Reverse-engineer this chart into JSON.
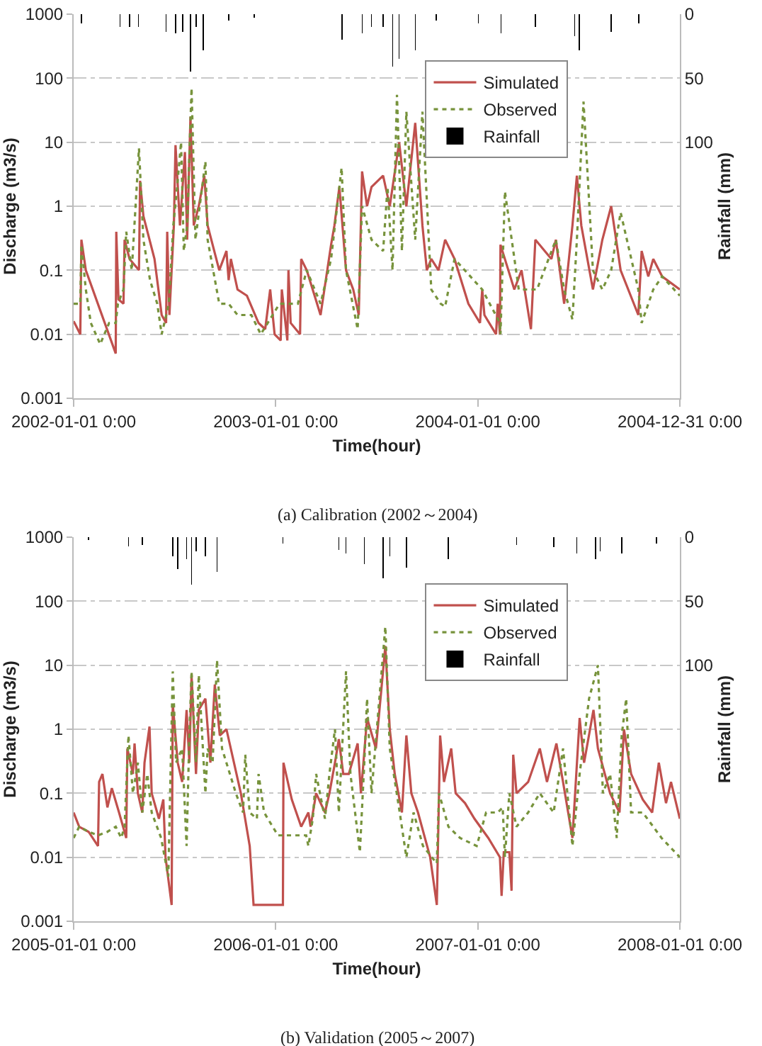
{
  "chart_data": [
    {
      "type": "line",
      "xlabel": "Time(hour)",
      "ylabel": "Discharge (m3/s)",
      "y2label": "Rainfall (mm)",
      "annotations": [
        "(a) Calibration (2002～2004)"
      ],
      "log": "y",
      "grid": "y",
      "legend": "top right",
      "xlim": [
        "2002-01-01",
        "2004-12-31"
      ],
      "xticks": [
        {
          "value": "2002-01-01",
          "label": "2002-01-01 0:00"
        },
        {
          "value": "2003-01-01",
          "label": "2003-01-01 0:00"
        },
        {
          "value": "2004-01-01",
          "label": "2004-01-01 0:00"
        },
        {
          "value": "2004-12-31",
          "label": "2004-12-31 0:00"
        }
      ],
      "ylim": [
        0.001,
        1000
      ],
      "yticks": [
        0.001,
        0.01,
        0.1,
        1,
        10,
        100,
        1000
      ],
      "y2lim": [
        300,
        0
      ],
      "y2ticks": [
        0,
        50,
        100
      ],
      "series": [
        {
          "name": "Simulated",
          "line_style": "solid",
          "color": "#c0504d",
          "x": [
            "2002-01-01",
            "2002-01-13",
            "2002-01-15",
            "2002-01-23",
            "2002-03-18",
            "2002-03-19",
            "2002-03-23",
            "2002-04-01",
            "2002-04-03",
            "2002-04-12",
            "2002-04-29",
            "2002-05-01",
            "2002-05-07",
            "2002-05-27",
            "2002-06-09",
            "2002-06-17",
            "2002-06-19",
            "2002-06-23",
            "2002-07-01",
            "2002-07-04",
            "2002-07-12",
            "2002-07-21",
            "2002-07-25",
            "2002-07-31",
            "2002-08-06",
            "2002-08-15",
            "2002-08-25",
            "2002-08-31",
            "2002-09-21",
            "2002-10-04",
            "2002-10-08",
            "2002-10-12",
            "2002-10-24",
            "2002-11-10",
            "2002-12-01",
            "2002-12-13",
            "2002-12-22",
            "2002-12-30",
            "2003-01-10",
            "2003-01-12",
            "2003-01-22",
            "2003-01-24",
            "2003-01-28",
            "2003-02-14",
            "2003-02-16",
            "2003-02-26",
            "2003-03-23",
            "2003-04-11",
            "2003-04-17",
            "2003-04-26",
            "2003-05-08",
            "2003-05-21",
            "2003-05-31",
            "2003-06-06",
            "2003-06-15",
            "2003-06-23",
            "2003-07-14",
            "2003-07-26",
            "2003-08-12",
            "2003-08-25",
            "2003-09-10",
            "2003-09-23",
            "2003-10-01",
            "2003-10-09",
            "2003-10-22",
            "2003-11-03",
            "2003-11-20",
            "2003-12-15",
            "2004-01-05",
            "2004-01-09",
            "2004-01-13",
            "2004-02-03",
            "2004-02-06",
            "2004-02-10",
            "2004-02-11",
            "2004-03-07",
            "2004-03-20",
            "2004-04-06",
            "2004-04-14",
            "2004-05-13",
            "2004-05-21",
            "2004-06-05",
            "2004-06-20",
            "2004-06-28",
            "2004-07-06",
            "2004-07-27",
            "2004-08-13",
            "2004-08-29",
            "2004-09-15",
            "2004-10-17",
            "2004-10-23",
            "2004-11-04",
            "2004-11-13",
            "2004-11-29",
            "2004-12-31"
          ],
          "values": [
            0.016,
            0.01,
            0.3,
            0.1,
            0.005,
            0.4,
            0.035,
            0.03,
            0.3,
            0.15,
            0.1,
            2.5,
            0.7,
            0.15,
            0.02,
            0.015,
            0.4,
            0.02,
            0.5,
            9,
            0.5,
            7,
            0.3,
            25,
            0.5,
            1,
            3,
            0.5,
            0.1,
            0.2,
            0.07,
            0.15,
            0.05,
            0.04,
            0.015,
            0.012,
            0.05,
            0.01,
            0.008,
            0.05,
            0.008,
            0.1,
            0.015,
            0.01,
            0.15,
            0.1,
            0.02,
            0.25,
            0.5,
            2,
            0.1,
            0.05,
            0.02,
            3.5,
            1,
            2,
            3,
            1,
            10,
            1,
            20,
            0.5,
            0.1,
            0.15,
            0.1,
            0.3,
            0.15,
            0.03,
            0.015,
            0.05,
            0.02,
            0.01,
            0.03,
            0.01,
            0.25,
            0.05,
            0.1,
            0.012,
            0.3,
            0.15,
            0.3,
            0.03,
            0.5,
            3,
            0.5,
            0.05,
            0.3,
            1,
            0.1,
            0.02,
            0.2,
            0.08,
            0.15,
            0.08,
            0.05
          ]
        },
        {
          "name": "Observed",
          "line_style": "dotted",
          "color": "#77933c",
          "x": [
            "2002-01-01",
            "2002-01-13",
            "2002-01-15",
            "2002-01-23",
            "2002-02-01",
            "2002-02-18",
            "2002-03-06",
            "2002-03-18",
            "2002-03-22",
            "2002-04-01",
            "2002-04-06",
            "2002-04-16",
            "2002-04-29",
            "2002-05-07",
            "2002-05-19",
            "2002-06-01",
            "2002-06-09",
            "2002-06-22",
            "2002-06-30",
            "2002-07-07",
            "2002-07-14",
            "2002-07-19",
            "2002-07-25",
            "2002-08-02",
            "2002-08-09",
            "2002-08-27",
            "2002-08-31",
            "2002-09-21",
            "2002-10-08",
            "2002-10-24",
            "2002-11-18",
            "2002-12-05",
            "2003-01-08",
            "2003-02-10",
            "2003-02-26",
            "2003-03-23",
            "2003-04-11",
            "2003-04-30",
            "2003-05-08",
            "2003-05-29",
            "2003-06-06",
            "2003-06-23",
            "2003-07-14",
            "2003-07-22",
            "2003-07-31",
            "2003-08-08",
            "2003-08-17",
            "2003-08-25",
            "2003-09-10",
            "2003-09-23",
            "2003-10-09",
            "2003-10-26",
            "2003-11-03",
            "2003-11-20",
            "2004-01-09",
            "2004-02-10",
            "2004-02-11",
            "2004-02-19",
            "2004-03-15",
            "2004-03-31",
            "2004-04-17",
            "2004-05-21",
            "2004-06-05",
            "2004-06-20",
            "2004-06-28",
            "2004-07-10",
            "2004-07-27",
            "2004-08-13",
            "2004-08-29",
            "2004-09-15",
            "2004-10-17",
            "2004-10-23",
            "2004-11-13",
            "2004-11-29",
            "2004-12-31"
          ],
          "values": [
            0.03,
            0.03,
            0.25,
            0.05,
            0.015,
            0.007,
            0.015,
            0.015,
            0.03,
            0.05,
            0.4,
            0.1,
            8,
            0.3,
            0.07,
            0.03,
            0.01,
            0.03,
            0.5,
            2,
            10,
            0.2,
            0.5,
            70,
            0.3,
            5,
            0.3,
            0.03,
            0.03,
            0.02,
            0.02,
            0.01,
            0.03,
            0.03,
            0.1,
            0.03,
            0.15,
            4,
            0.1,
            0.012,
            1,
            0.3,
            0.2,
            2,
            0.1,
            55,
            0.2,
            30,
            0.3,
            30,
            0.05,
            0.03,
            0.027,
            0.15,
            0.05,
            0.015,
            0.01,
            1.7,
            0.05,
            0.05,
            0.05,
            0.3,
            0.05,
            0.017,
            0.3,
            43,
            0.1,
            0.05,
            0.1,
            0.8,
            0.05,
            0.015,
            0.05,
            0.08,
            0.04
          ]
        },
        {
          "name": "Rainfall",
          "type": "bar",
          "axis": "y2",
          "color": "#000000",
          "x": [
            "2002-01-15",
            "2002-03-26",
            "2002-04-12",
            "2002-04-28",
            "2002-06-17",
            "2002-07-04",
            "2002-07-17",
            "2002-07-31",
            "2002-08-10",
            "2002-08-23",
            "2002-10-08",
            "2002-11-23",
            "2003-05-01",
            "2003-06-06",
            "2003-06-23",
            "2003-07-14",
            "2003-07-31",
            "2003-08-12",
            "2003-09-10",
            "2003-10-18",
            "2004-01-02",
            "2004-02-12",
            "2004-04-14",
            "2004-06-24",
            "2004-07-02",
            "2004-08-29",
            "2004-10-18"
          ],
          "values": [
            7,
            10,
            10,
            10,
            14,
            15,
            14,
            45,
            10,
            28,
            5,
            3,
            20,
            15,
            10,
            10,
            41,
            35,
            28,
            5,
            7,
            15,
            10,
            17,
            28,
            14,
            7
          ]
        }
      ]
    },
    {
      "type": "line",
      "xlabel": "Time(hour)",
      "ylabel": "Discharge (m3/s)",
      "y2label": "Rainfall (mm)",
      "annotations": [
        "(b) Validation (2005～2007)"
      ],
      "log": "y",
      "grid": "y",
      "legend": "top right",
      "xlim": [
        "2005-01-01",
        "2008-01-01"
      ],
      "xticks": [
        {
          "value": "2005-01-01",
          "label": "2005-01-01 0:00"
        },
        {
          "value": "2006-01-01",
          "label": "2006-01-01 0:00"
        },
        {
          "value": "2007-01-01",
          "label": "2007-01-01 0:00"
        },
        {
          "value": "2008-01-01",
          "label": "2008-01-01 0:00"
        }
      ],
      "ylim": [
        0.001,
        1000
      ],
      "yticks": [
        0.001,
        0.01,
        0.1,
        1,
        10,
        100,
        1000
      ],
      "y2lim": [
        300,
        0
      ],
      "y2ticks": [
        0,
        50,
        100
      ],
      "series": [
        {
          "name": "Simulated",
          "line_style": "solid",
          "color": "#c0504d",
          "x": [
            "2005-01-01",
            "2005-01-11",
            "2005-01-28",
            "2005-02-14",
            "2005-02-16",
            "2005-02-22",
            "2005-03-03",
            "2005-03-11",
            "2005-03-24",
            "2005-04-06",
            "2005-04-08",
            "2005-04-18",
            "2005-04-21",
            "2005-04-27",
            "2005-05-05",
            "2005-05-09",
            "2005-05-18",
            "2005-05-22",
            "2005-06-04",
            "2005-06-12",
            "2005-06-16",
            "2005-06-27",
            "2005-06-29",
            "2005-07-08",
            "2005-07-16",
            "2005-07-24",
            "2005-07-29",
            "2005-08-02",
            "2005-08-10",
            "2005-08-15",
            "2005-08-27",
            "2005-09-05",
            "2005-09-13",
            "2005-09-22",
            "2005-10-04",
            "2005-10-30",
            "2005-11-15",
            "2005-11-22",
            "2006-01-14",
            "2006-01-15",
            "2006-01-30",
            "2006-02-16",
            "2006-03-01",
            "2006-03-05",
            "2006-03-15",
            "2006-03-31",
            "2006-04-08",
            "2006-04-18",
            "2006-04-25",
            "2006-05-03",
            "2006-05-13",
            "2006-05-29",
            "2006-06-04",
            "2006-06-15",
            "2006-07-01",
            "2006-07-18",
            "2006-07-26",
            "2006-08-04",
            "2006-08-17",
            "2006-08-25",
            "2006-09-03",
            "2006-09-15",
            "2006-10-07",
            "2006-10-19",
            "2006-10-25",
            "2006-11-01",
            "2006-11-14",
            "2006-11-22",
            "2006-12-09",
            "2006-12-26",
            "2007-01-20",
            "2007-02-10",
            "2007-02-13",
            "2007-02-17",
            "2007-02-27",
            "2007-03-03",
            "2007-03-06",
            "2007-03-12",
            "2007-04-02",
            "2007-04-23",
            "2007-05-06",
            "2007-05-23",
            "2007-06-04",
            "2007-06-21",
            "2007-07-04",
            "2007-07-12",
            "2007-07-29",
            "2007-08-06",
            "2007-08-28",
            "2007-09-14",
            "2007-09-22",
            "2007-10-05",
            "2007-10-26",
            "2007-11-12",
            "2007-11-24",
            "2007-12-07",
            "2007-12-16",
            "2008-01-01"
          ],
          "values": [
            0.05,
            0.03,
            0.025,
            0.015,
            0.15,
            0.2,
            0.06,
            0.12,
            0.05,
            0.02,
            0.5,
            0.2,
            0.6,
            0.1,
            0.05,
            0.3,
            1.1,
            0.1,
            0.04,
            0.08,
            0.01,
            0.0018,
            2.5,
            0.3,
            0.15,
            2,
            0.3,
            7,
            0.2,
            2,
            3,
            0.3,
            5,
            0.8,
            1,
            0.1,
            0.015,
            0.0018,
            0.0018,
            0.3,
            0.08,
            0.03,
            0.05,
            0.03,
            0.1,
            0.05,
            0.1,
            0.3,
            0.7,
            0.2,
            0.2,
            0.6,
            0.1,
            1.5,
            0.5,
            20,
            1,
            0.2,
            0.05,
            0.8,
            0.1,
            0.05,
            0.01,
            0.0018,
            0.8,
            0.15,
            0.5,
            0.1,
            0.07,
            0.04,
            0.02,
            0.01,
            0.0025,
            0.012,
            0.012,
            0.003,
            0.4,
            0.1,
            0.15,
            0.5,
            0.15,
            0.6,
            0.15,
            0.02,
            1.5,
            0.3,
            2,
            0.5,
            0.1,
            0.05,
            1,
            0.2,
            0.08,
            0.05,
            0.3,
            0.07,
            0.15,
            0.04
          ]
        },
        {
          "name": "Observed",
          "line_style": "dotted",
          "color": "#77933c",
          "x": [
            "2005-01-01",
            "2005-01-11",
            "2005-01-28",
            "2005-02-14",
            "2005-03-03",
            "2005-03-18",
            "2005-03-28",
            "2005-04-03",
            "2005-04-10",
            "2005-04-18",
            "2005-04-27",
            "2005-05-05",
            "2005-05-14",
            "2005-05-22",
            "2005-06-08",
            "2005-06-21",
            "2005-06-29",
            "2005-07-05",
            "2005-07-16",
            "2005-07-24",
            "2005-07-29",
            "2005-08-02",
            "2005-08-10",
            "2005-08-15",
            "2005-08-27",
            "2005-08-31",
            "2005-09-09",
            "2005-09-17",
            "2005-09-26",
            "2005-10-21",
            "2005-11-03",
            "2005-11-07",
            "2005-11-15",
            "2005-11-28",
            "2005-12-01",
            "2005-12-11",
            "2006-01-05",
            "2006-02-25",
            "2006-03-01",
            "2006-03-09",
            "2006-03-15",
            "2006-03-31",
            "2006-04-08",
            "2006-04-18",
            "2006-04-25",
            "2006-05-08",
            "2006-05-16",
            "2006-06-02",
            "2006-06-10",
            "2006-06-15",
            "2006-06-23",
            "2006-07-18",
            "2006-07-26",
            "2006-08-13",
            "2006-08-25",
            "2006-09-07",
            "2006-09-24",
            "2006-10-19",
            "2006-10-23",
            "2006-11-09",
            "2006-11-30",
            "2006-12-30",
            "2007-01-16",
            "2007-02-06",
            "2007-02-15",
            "2007-02-19",
            "2007-02-27",
            "2007-03-12",
            "2007-04-02",
            "2007-04-23",
            "2007-05-18",
            "2007-06-04",
            "2007-06-21",
            "2007-07-04",
            "2007-07-21",
            "2007-08-06",
            "2007-08-15",
            "2007-08-28",
            "2007-09-09",
            "2007-09-18",
            "2007-09-26",
            "2007-10-05",
            "2007-10-26",
            "2007-11-29",
            "2008-01-01"
          ],
          "values": [
            0.02,
            0.03,
            0.025,
            0.022,
            0.025,
            0.03,
            0.02,
            0.03,
            0.8,
            0.1,
            0.3,
            0.05,
            0.2,
            0.05,
            0.02,
            0.005,
            8,
            0.3,
            0.5,
            0.015,
            0.8,
            8,
            0.3,
            7,
            0.1,
            0.5,
            0.3,
            12,
            0.5,
            0.1,
            0.05,
            0.4,
            0.05,
            0.04,
            0.2,
            0.05,
            0.022,
            0.022,
            0.015,
            0.04,
            0.2,
            0.04,
            0.2,
            1,
            0.05,
            8,
            0.2,
            0.012,
            0.3,
            3,
            0.1,
            40,
            0.5,
            0.05,
            0.01,
            0.05,
            0.015,
            0.008,
            0.1,
            0.03,
            0.02,
            0.015,
            0.05,
            0.05,
            0.06,
            0.01,
            0.1,
            0.03,
            0.05,
            0.1,
            0.05,
            0.5,
            0.015,
            0.2,
            3,
            10,
            0.1,
            0.2,
            0.02,
            0.8,
            3,
            0.05,
            0.05,
            0.02,
            0.01
          ]
        },
        {
          "name": "Rainfall",
          "type": "bar",
          "axis": "y2",
          "color": "#000000",
          "x": [
            "2005-01-28",
            "2005-04-10",
            "2005-05-05",
            "2005-06-29",
            "2005-07-08",
            "2005-07-24",
            "2005-08-02",
            "2005-08-10",
            "2005-08-27",
            "2005-09-17",
            "2006-01-14",
            "2006-04-25",
            "2006-05-08",
            "2006-06-10",
            "2006-07-14",
            "2006-07-26",
            "2006-08-25",
            "2006-11-09",
            "2007-03-12",
            "2007-05-18",
            "2007-06-29",
            "2007-08-02",
            "2007-08-10",
            "2007-09-18",
            "2007-11-20"
          ],
          "values": [
            2,
            7,
            6,
            15,
            25,
            17,
            37,
            11,
            15,
            27,
            5,
            10,
            13,
            21,
            32,
            15,
            24,
            17,
            6,
            8,
            13,
            17,
            11,
            13,
            5
          ]
        }
      ]
    }
  ]
}
